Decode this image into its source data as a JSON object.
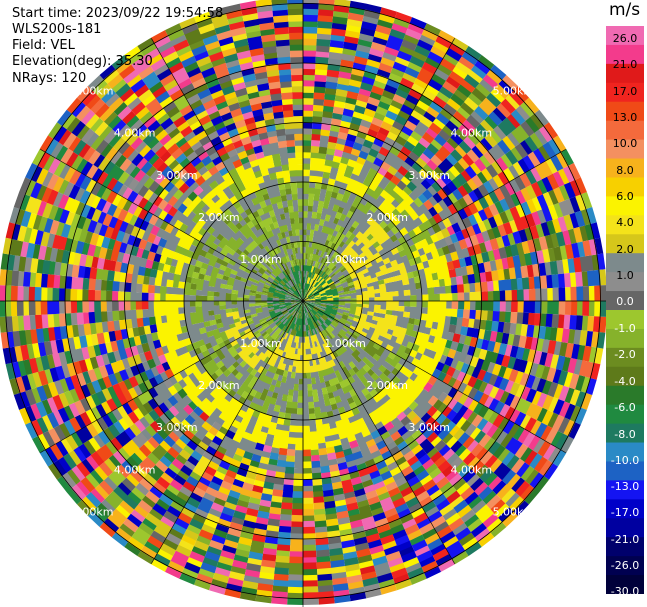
{
  "info": {
    "start_time": "Start time: 2023/09/22 19:54:58",
    "instrument": "WLS200s-181",
    "field": "Field: VEL",
    "elevation": "Elevation(deg): 35.30",
    "nrays": "NRays: 120"
  },
  "colorbar": {
    "unit": "m/s",
    "colors": [
      "#f06ab2",
      "#f33b8c",
      "#e01a1a",
      "#f0241f",
      "#f04a17",
      "#f46a3c",
      "#f49060",
      "#f7b21c",
      "#f7d000",
      "#fbf300",
      "#f4e31a",
      "#d6c71a",
      "#7d8a8c",
      "#8d8d8d",
      "#666666",
      "#9dc72e",
      "#86b22b",
      "#6c8c20",
      "#5e7a1a",
      "#2a7a2a",
      "#208a40",
      "#1e7a60",
      "#2a8ac6",
      "#1d62c4",
      "#1414f2",
      "#0000c8",
      "#0000a0",
      "#00006c",
      "#000050",
      "#00003a"
    ],
    "ticks": [
      "26.0",
      "21.0",
      "17.0",
      "13.0",
      "10.0",
      "8.0",
      "6.0",
      "4.0",
      "2.0",
      "1.0",
      "0.0",
      "-1.0",
      "-2.0",
      "-4.0",
      "-6.0",
      "-8.0",
      "-10.0",
      "-13.0",
      "-17.0",
      "-21.0",
      "-26.0",
      "-30.0"
    ]
  },
  "chart_data": {
    "type": "heatmap",
    "title": "Field: VEL",
    "units": "m/s",
    "projection": "polar (PPI)",
    "range_rings_km": [
      1,
      2,
      3,
      4,
      5
    ],
    "range_labels": [
      "1.00km",
      "2.00km",
      "3.00km",
      "4.00km",
      "5.00km"
    ],
    "nrays": 120,
    "vmin": -30.0,
    "vmax": 26.0,
    "description_zones": [
      {
        "range_km": [
          0,
          0.6
        ],
        "dominant": "green (-1 to -6 m/s)"
      },
      {
        "range_km": [
          0.6,
          2.1
        ],
        "dominant": "olive/grey (-2 to 0 m/s) with yellow patches (+1 to +4 m/s)"
      },
      {
        "range_km": [
          2.1,
          2.5
        ],
        "dominant": "yellow ring, strongest in south"
      },
      {
        "range_km": [
          2.5,
          5.3
        ],
        "dominant": "random full-scale noise"
      }
    ]
  }
}
